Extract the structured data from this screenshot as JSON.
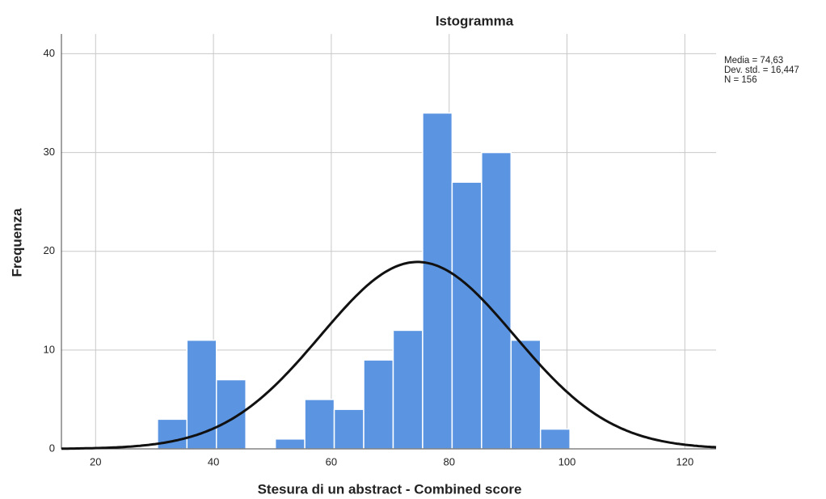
{
  "chart_data": {
    "type": "histogram",
    "title": "Istogramma",
    "x_label": "Stesura di un abstract - Combined score",
    "y_label": "Frequenza",
    "bins": [
      30.5,
      35.5,
      40.5,
      45.5,
      50.5,
      55.5,
      60.5,
      65.5,
      70.5,
      75.5,
      80.5,
      85.5,
      90.5,
      95.5,
      100.5
    ],
    "values": [
      3,
      11,
      7,
      0,
      1,
      5,
      4,
      9,
      12,
      34,
      27,
      30,
      11,
      2
    ],
    "color": "#5b95e2",
    "xlim": [
      14.2,
      125.3
    ],
    "ylim": [
      0,
      42
    ],
    "xticks": [
      20,
      40,
      60,
      80,
      100,
      120
    ],
    "yticks": [
      0,
      10,
      20,
      30,
      40
    ],
    "grid": true,
    "annotations": [
      "Media = 74,63",
      "Dev. std. = 16,447",
      "N = 156"
    ],
    "normal_curve": {
      "mean": 74.63,
      "sd": 16.447,
      "n": 156,
      "color": "#111111"
    }
  }
}
